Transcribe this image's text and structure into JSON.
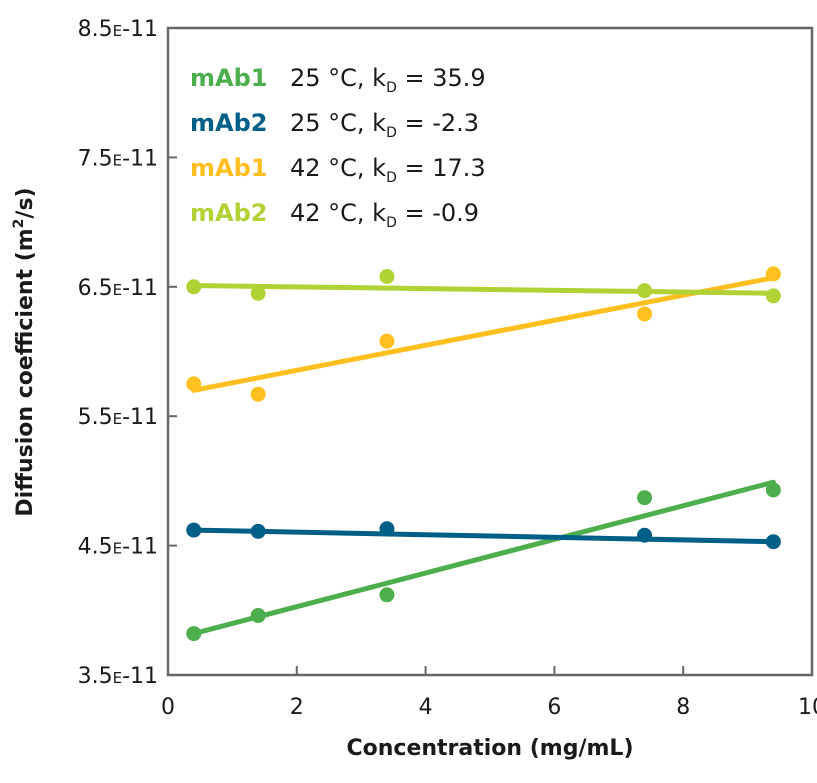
{
  "chart_data": {
    "type": "scatter",
    "title": "",
    "xlabel": "Concentration (mg/mL)",
    "ylabel_parts": [
      "Diffusion coefficient (m",
      "2",
      "/s)"
    ],
    "xlim": [
      0,
      10
    ],
    "ylim": [
      3.5e-11,
      8.5e-11
    ],
    "x_ticks": [
      0,
      2,
      4,
      6,
      8,
      10
    ],
    "x_tick_labels": [
      "0",
      "2",
      "4",
      "6",
      "8",
      "10"
    ],
    "y_ticks": [
      3.5e-11,
      4.5e-11,
      5.5e-11,
      6.5e-11,
      7.5e-11,
      8.5e-11
    ],
    "y_tick_labels": [
      {
        "mantissa": "3.5",
        "exp_mark": "E",
        "exponent": "-11"
      },
      {
        "mantissa": "4.5",
        "exp_mark": "E",
        "exponent": "-11"
      },
      {
        "mantissa": "5.5",
        "exp_mark": "E",
        "exponent": "-11"
      },
      {
        "mantissa": "6.5",
        "exp_mark": "E",
        "exponent": "-11"
      },
      {
        "mantissa": "7.5",
        "exp_mark": "E",
        "exponent": "-11"
      },
      {
        "mantissa": "8.5",
        "exp_mark": "E",
        "exponent": "-11"
      }
    ],
    "grid": false,
    "legend_position": "top-left",
    "series": [
      {
        "name": "mAb1",
        "temp_label": "25 °C, k",
        "kd_sub": "D",
        "kd_value": " = 35.9",
        "color": "#4cae4c",
        "x": [
          0.4,
          1.4,
          3.4,
          7.4,
          9.4
        ],
        "y": [
          3.82e-11,
          3.96e-11,
          4.12e-11,
          4.87e-11,
          4.93e-11
        ],
        "fit": [
          [
            0.4,
            3.82e-11
          ],
          [
            9.4,
            4.99e-11
          ]
        ]
      },
      {
        "name": "mAb2",
        "temp_label": "25 °C, k",
        "kd_sub": "D",
        "kd_value": " = -2.3",
        "color": "#005f87",
        "x": [
          0.4,
          1.4,
          3.4,
          7.4,
          9.4
        ],
        "y": [
          4.62e-11,
          4.61e-11,
          4.63e-11,
          4.58e-11,
          4.53e-11
        ],
        "fit": [
          [
            0.4,
            4.62e-11
          ],
          [
            9.4,
            4.53e-11
          ]
        ]
      },
      {
        "name": "mAb1",
        "temp_label": "42 °C, k",
        "kd_sub": "D",
        "kd_value": " = 17.3",
        "color": "#ffbf1f",
        "x": [
          0.4,
          1.4,
          3.4,
          7.4,
          9.4
        ],
        "y": [
          5.75e-11,
          5.67e-11,
          6.08e-11,
          6.29e-11,
          6.6e-11
        ],
        "fit": [
          [
            0.4,
            5.7e-11
          ],
          [
            9.4,
            6.57e-11
          ]
        ]
      },
      {
        "name": "mAb2",
        "temp_label": "42 °C, k",
        "kd_sub": "D",
        "kd_value": " = -0.9",
        "color": "#b0d235",
        "x": [
          0.4,
          1.4,
          3.4,
          7.4,
          9.4
        ],
        "y": [
          6.5e-11,
          6.45e-11,
          6.58e-11,
          6.47e-11,
          6.43e-11
        ],
        "fit": [
          [
            0.4,
            6.51e-11
          ],
          [
            9.4,
            6.45e-11
          ]
        ]
      }
    ]
  }
}
